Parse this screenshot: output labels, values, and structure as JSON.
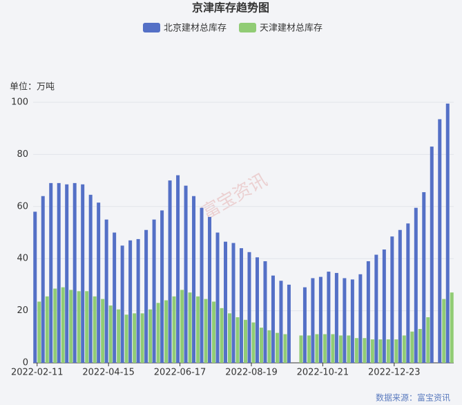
{
  "chart_data": {
    "type": "bar",
    "title": "京津库存趋势图",
    "unit": "单位：万吨",
    "source": "数据来源：富宝资讯",
    "watermark": "富宝资讯",
    "categories": [
      "2022-02-11",
      null,
      null,
      null,
      null,
      null,
      null,
      null,
      null,
      "2022-04-15",
      null,
      null,
      null,
      null,
      null,
      null,
      null,
      null,
      "2022-06-17",
      null,
      null,
      null,
      null,
      null,
      null,
      null,
      null,
      "2022-08-19",
      null,
      null,
      null,
      null,
      null,
      null,
      null,
      null,
      "2022-10-21",
      null,
      null,
      null,
      null,
      null,
      null,
      null,
      null,
      "2022-12-23",
      null,
      null,
      null,
      null,
      null,
      null,
      null
    ],
    "series": [
      {
        "name": "北京建材总库存",
        "color": "#5470c6",
        "values": [
          58,
          64,
          69,
          69,
          68.5,
          69,
          68.5,
          64.5,
          61.5,
          55,
          50,
          45,
          47,
          47.5,
          51,
          55,
          58.5,
          70,
          72,
          68,
          64,
          59.5,
          56,
          50,
          46.5,
          46,
          44,
          42.5,
          40.5,
          39,
          33.5,
          31.5,
          30,
          null,
          29,
          32.5,
          33,
          35,
          34.5,
          32.5,
          32,
          34,
          39,
          41.5,
          43.5,
          48.5,
          51,
          53.5,
          59.5,
          65.5,
          83,
          93.5,
          99.5
        ]
      },
      {
        "name": "天津建材总库存",
        "color": "#91cc75",
        "values": [
          23.5,
          25.5,
          28.5,
          29,
          28,
          27.5,
          27.5,
          25.5,
          24.5,
          22,
          20.5,
          18.5,
          19,
          19,
          20.5,
          23,
          24,
          25.5,
          28,
          27,
          25.5,
          24.5,
          23.5,
          21,
          19,
          17.5,
          16.5,
          15.5,
          13.5,
          12.5,
          11.5,
          11,
          null,
          10.5,
          10.5,
          11,
          11,
          11,
          10.5,
          10.5,
          9.5,
          9.5,
          9,
          9,
          9,
          9,
          10.5,
          12,
          13,
          17.5,
          null,
          24.5,
          27
        ]
      }
    ],
    "ylim": [
      0,
      100
    ],
    "yticks": [
      0,
      20,
      40,
      60,
      80,
      100
    ],
    "grid": true
  }
}
